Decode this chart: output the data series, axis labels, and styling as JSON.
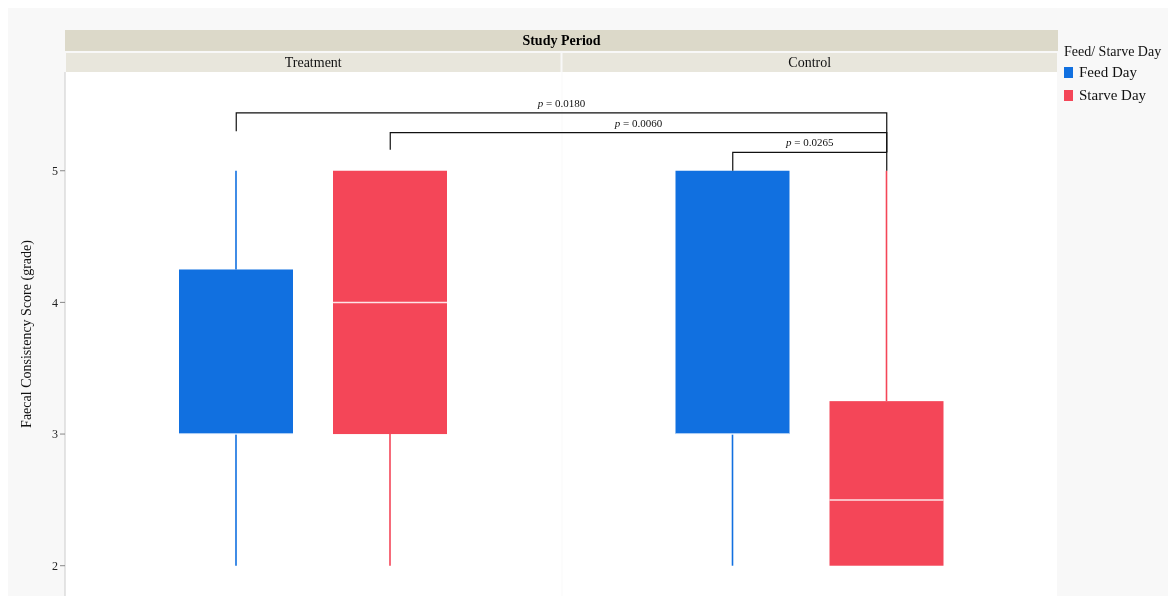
{
  "chart_data": {
    "type": "box",
    "title": "Study Period",
    "ylabel": "Faecal Consistency Score (grade)",
    "legend_title": "Feed/ Starve Day",
    "categories": [
      "Treatment",
      "Control"
    ],
    "series": [
      {
        "name": "Feed Day",
        "color": "#1170e0",
        "boxes": [
          {
            "low": 2,
            "q1": 3,
            "median": 3,
            "q3": 4.25,
            "high": 5
          },
          {
            "low": 2,
            "q1": 3,
            "median": 3,
            "q3": 5,
            "high": 5
          }
        ]
      },
      {
        "name": "Starve Day",
        "color": "#f44658",
        "boxes": [
          {
            "low": 2,
            "q1": 3,
            "median": 4,
            "q3": 5,
            "high": 5
          },
          {
            "low": 2,
            "q1": 2,
            "median": 2.5,
            "q3": 3.25,
            "high": 5
          }
        ]
      }
    ],
    "ylim": [
      1.77,
      5.75
    ],
    "yticks": [
      2,
      3,
      4,
      5
    ],
    "legend": "top right",
    "annotations": [
      "p = 0.0180",
      "p = 0.0060",
      "p = 0.0265"
    ]
  }
}
